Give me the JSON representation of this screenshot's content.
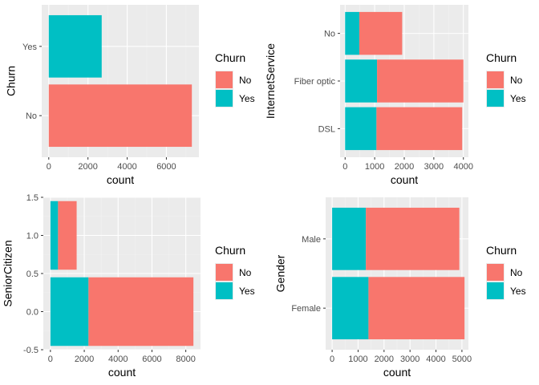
{
  "chart_data": [
    {
      "type": "bar",
      "orientation": "horizontal",
      "stacked": true,
      "categories": [
        "No",
        "Yes"
      ],
      "series": [
        {
          "name": "No",
          "values": [
            7300,
            0
          ]
        },
        {
          "name": "Yes",
          "values": [
            0,
            2700
          ]
        }
      ],
      "xlabel": "count",
      "ylabel": "Churn",
      "xlim": [
        -360,
        7660
      ],
      "xticks": [
        0,
        2000,
        4000,
        6000
      ],
      "xtick_labels": [
        "0",
        "2000",
        "4000",
        "6000"
      ],
      "grid": true,
      "legend": {
        "title": "Churn",
        "position": "right",
        "entries": [
          "No",
          "Yes"
        ]
      }
    },
    {
      "type": "bar",
      "orientation": "horizontal",
      "stacked": true,
      "categories": [
        "DSL",
        "Fiber optic",
        "No"
      ],
      "series": [
        {
          "name": "No",
          "values": [
            2900,
            2920,
            1450
          ]
        },
        {
          "name": "Yes",
          "values": [
            1060,
            1080,
            480
          ]
        }
      ],
      "xlabel": "count",
      "ylabel": "InternetService",
      "xlim": [
        -170,
        4170
      ],
      "xticks": [
        0,
        1000,
        2000,
        3000,
        4000
      ],
      "xtick_labels": [
        "0",
        "1000",
        "2000",
        "3000",
        "4000"
      ],
      "grid": true,
      "legend": {
        "title": "Churn",
        "position": "right",
        "entries": [
          "No",
          "Yes"
        ]
      }
    },
    {
      "type": "bar",
      "orientation": "horizontal",
      "stacked": true,
      "categories": [
        0,
        1
      ],
      "series": [
        {
          "name": "No",
          "values": [
            6200,
            1100
          ]
        },
        {
          "name": "Yes",
          "values": [
            2250,
            450
          ]
        }
      ],
      "xlabel": "count",
      "ylabel": "SeniorCitizen",
      "xlim": [
        -420,
        8870
      ],
      "ylim": [
        -0.5,
        1.5
      ],
      "xticks": [
        0,
        2000,
        4000,
        6000,
        8000
      ],
      "xtick_labels": [
        "0",
        "2000",
        "4000",
        "6000",
        "8000"
      ],
      "yticks": [
        -0.5,
        0.0,
        0.5,
        1.0,
        1.5
      ],
      "ytick_labels": [
        "-0.5",
        "0.0",
        "0.5",
        "1.0",
        "1.5"
      ],
      "grid": true,
      "legend": {
        "title": "Churn",
        "position": "right",
        "entries": [
          "No",
          "Yes"
        ]
      }
    },
    {
      "type": "bar",
      "orientation": "horizontal",
      "stacked": true,
      "categories": [
        "Female",
        "Male"
      ],
      "series": [
        {
          "name": "No",
          "values": [
            3700,
            3600
          ]
        },
        {
          "name": "Yes",
          "values": [
            1400,
            1300
          ]
        }
      ],
      "xlabel": "count",
      "ylabel": "Gender",
      "xlim": [
        -250,
        5250
      ],
      "xticks": [
        0,
        1000,
        2000,
        3000,
        4000,
        5000
      ],
      "xtick_labels": [
        "0",
        "1000",
        "2000",
        "3000",
        "4000",
        "5000"
      ],
      "grid": true,
      "legend": {
        "title": "Churn",
        "position": "right",
        "entries": [
          "No",
          "Yes"
        ]
      }
    }
  ],
  "colors": {
    "No": "#F8766D",
    "Yes": "#00BFC4",
    "panel": "#EBEBEB",
    "grid_major": "#FFFFFF",
    "grid_minor": "#F2F2F2",
    "tick": "#333333"
  }
}
